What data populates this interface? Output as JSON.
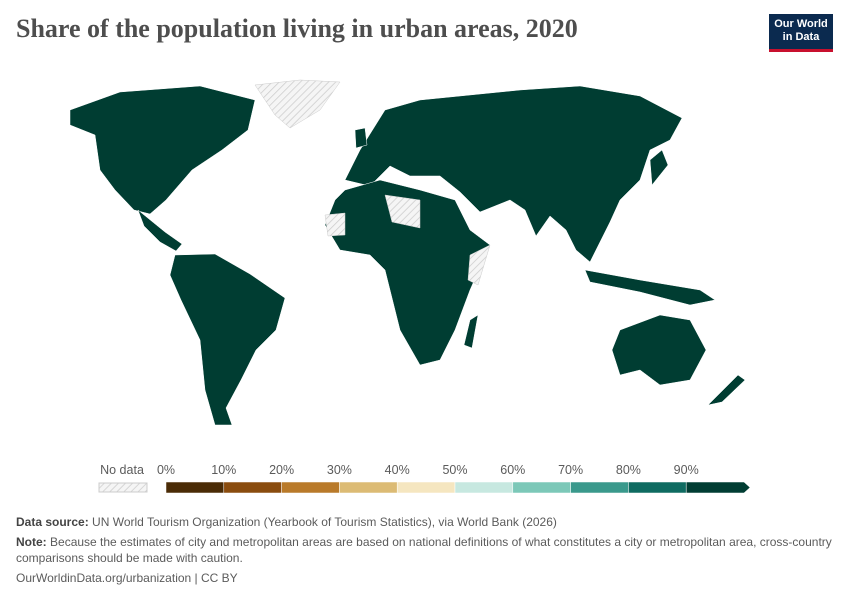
{
  "title": "Share of the population living in urban areas, 2020",
  "logo": {
    "line1": "Our World",
    "line2": "in Data"
  },
  "legend": {
    "no_data_label": "No data",
    "bins": [
      {
        "label": "0%",
        "color": "#4a2b06"
      },
      {
        "label": "10%",
        "color": "#8a4c0f"
      },
      {
        "label": "20%",
        "color": "#b97a2a"
      },
      {
        "label": "30%",
        "color": "#dcbb74"
      },
      {
        "label": "40%",
        "color": "#f5e6c0"
      },
      {
        "label": "50%",
        "color": "#c7e8e0"
      },
      {
        "label": "60%",
        "color": "#7cc8b8"
      },
      {
        "label": "70%",
        "color": "#3a998c"
      },
      {
        "label": "80%",
        "color": "#0f6b61"
      },
      {
        "label": "90%",
        "color": "#013d33"
      }
    ]
  },
  "source": {
    "label": "Data source:",
    "text": "UN World Tourism Organization (Yearbook of Tourism Statistics), via World Bank (2026)"
  },
  "note": {
    "label": "Note:",
    "text": "Because the estimates of city and metropolitan areas are based on national definitions of what constitutes a city or metropolitan area, cross-country comparisons should be made with caution."
  },
  "footer": "OurWorldinData.org/urbanization | CC BY"
}
